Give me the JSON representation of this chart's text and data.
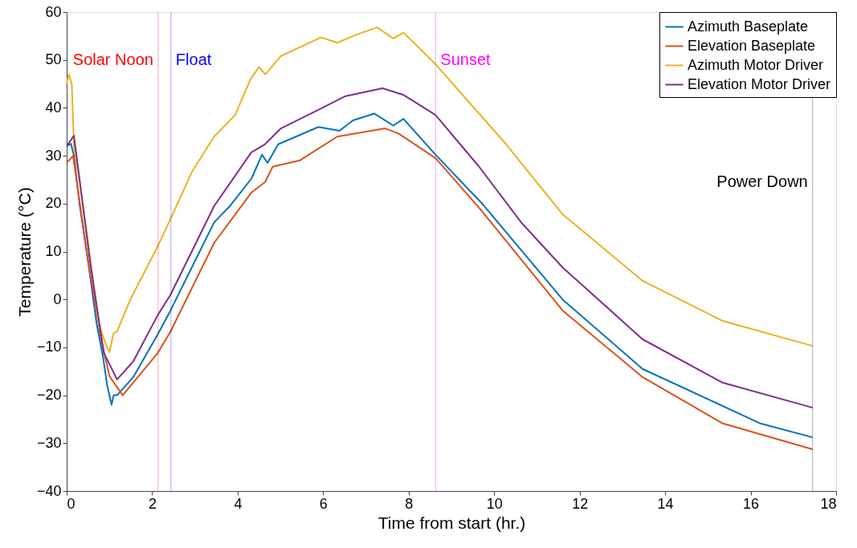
{
  "chart_data": {
    "type": "line",
    "xlabel": "Time from start (hr.)",
    "ylabel": "Temperature (°C)",
    "xlim": [
      0,
      18
    ],
    "ylim": [
      -40,
      60
    ],
    "xticks": [
      0,
      2,
      4,
      6,
      8,
      10,
      12,
      14,
      16,
      18
    ],
    "yticks": [
      -40,
      -30,
      -20,
      -10,
      0,
      10,
      20,
      30,
      40,
      50,
      60
    ],
    "grid": false,
    "legend": "top right",
    "marker": "none",
    "line_style": "solid",
    "series": [
      {
        "name": "Azimuth Baseplate",
        "color": "#0072bd",
        "x": [
          0,
          0.1,
          0.17,
          0.3,
          0.5,
          0.7,
          0.85,
          0.95,
          1.05,
          1.1,
          1.18,
          1.56,
          2.13,
          2.43,
          3.45,
          3.82,
          4.32,
          4.57,
          4.7,
          4.95,
          5.89,
          6.38,
          6.7,
          7.2,
          7.64,
          7.88,
          8.63,
          9.71,
          11.6,
          13.47,
          16.23,
          17.45
        ],
        "values": [
          32,
          32.5,
          30,
          20,
          8,
          -5,
          -12,
          -18,
          -22,
          -20,
          -20,
          -16.2,
          -7.3,
          -2.3,
          16.1,
          19.5,
          25.2,
          30.2,
          28.5,
          32.4,
          36,
          35.2,
          37.4,
          38.8,
          36.3,
          37.7,
          30.2,
          20.1,
          0,
          -14.5,
          -25.9,
          -28.8
        ]
      },
      {
        "name": "Elevation Baseplate",
        "color": "#d95319",
        "x": [
          0,
          0.15,
          0.5,
          0.8,
          1.0,
          1.31,
          2.13,
          2.43,
          3.45,
          4.32,
          4.64,
          4.82,
          5.45,
          6.33,
          7.45,
          7.77,
          8.63,
          9.71,
          11.6,
          13.47,
          15.35,
          17.45
        ],
        "values": [
          28.5,
          30,
          8,
          -8,
          -16,
          -20,
          -11.2,
          -6.7,
          11.8,
          22.3,
          24.5,
          27.7,
          29,
          34,
          35.7,
          34.6,
          29.5,
          18.5,
          -2.3,
          -16.2,
          -25.9,
          -31.3
        ]
      },
      {
        "name": "Azimuth Motor Driver",
        "color": "#edb120",
        "x": [
          0,
          0.05,
          0.12,
          0.17,
          0.3,
          0.5,
          0.75,
          0.9,
          1.0,
          1.1,
          1.18,
          1.49,
          2.13,
          2.43,
          2.94,
          3.45,
          3.94,
          4.3,
          4.5,
          4.65,
          5.01,
          5.95,
          6.33,
          6.7,
          7.26,
          7.64,
          7.88,
          8.63,
          10.28,
          11.6,
          13.47,
          15.35,
          17.45
        ],
        "values": [
          45,
          47,
          45,
          32,
          25,
          12,
          -5,
          -9,
          -11,
          -7,
          -6.7,
          0,
          11.1,
          16.8,
          26.8,
          34,
          38.5,
          46,
          48.5,
          47,
          50.8,
          54.7,
          53.6,
          55,
          56.8,
          54.5,
          55.7,
          49.1,
          32.4,
          17.8,
          3.9,
          -4.5,
          -9.7
        ]
      },
      {
        "name": "Elevation Motor Driver",
        "color": "#7e2f8e",
        "x": [
          0,
          0.17,
          0.55,
          0.87,
          1.18,
          1.56,
          2.13,
          2.43,
          3.45,
          4.32,
          4.64,
          5.01,
          5.89,
          6.51,
          7.39,
          7.88,
          8.63,
          9.64,
          10.65,
          11.6,
          13.47,
          15.35,
          17.45
        ],
        "values": [
          32,
          34.2,
          7.7,
          -11.2,
          -16.7,
          -12.9,
          -3.3,
          1,
          19.5,
          30.7,
          32.4,
          35.7,
          39.6,
          42.4,
          44.1,
          42.7,
          38.5,
          27.8,
          15.9,
          6.7,
          -8.3,
          -17.4,
          -22.6
        ]
      }
    ],
    "ref_lines": [
      {
        "axis": "x",
        "value": 2.14,
        "label": "Solar Noon",
        "color": "#ff0000"
      },
      {
        "axis": "x",
        "value": 2.44,
        "label": "Float",
        "color": "#0000ff"
      },
      {
        "axis": "x",
        "value": 8.63,
        "label": "Sunset",
        "color": "#ff00ff"
      },
      {
        "axis": "x",
        "value": 17.45,
        "label": "Power Down",
        "color": "#000000"
      }
    ]
  }
}
